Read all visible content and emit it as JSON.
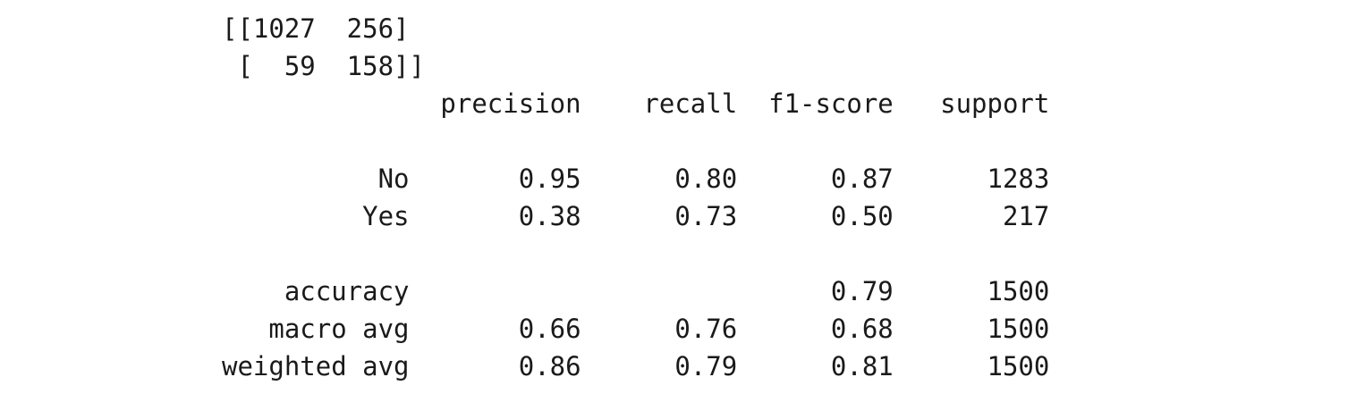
{
  "output": {
    "lines": [
      "[[1027  256]",
      " [  59  158]]",
      "              precision    recall  f1-score   support",
      "",
      "          No       0.95      0.80      0.87      1283",
      "         Yes       0.38      0.73      0.50       217",
      "",
      "    accuracy                           0.79      1500",
      "   macro avg       0.66      0.76      0.68      1500",
      "weighted avg       0.86      0.79      0.81      1500"
    ]
  }
}
